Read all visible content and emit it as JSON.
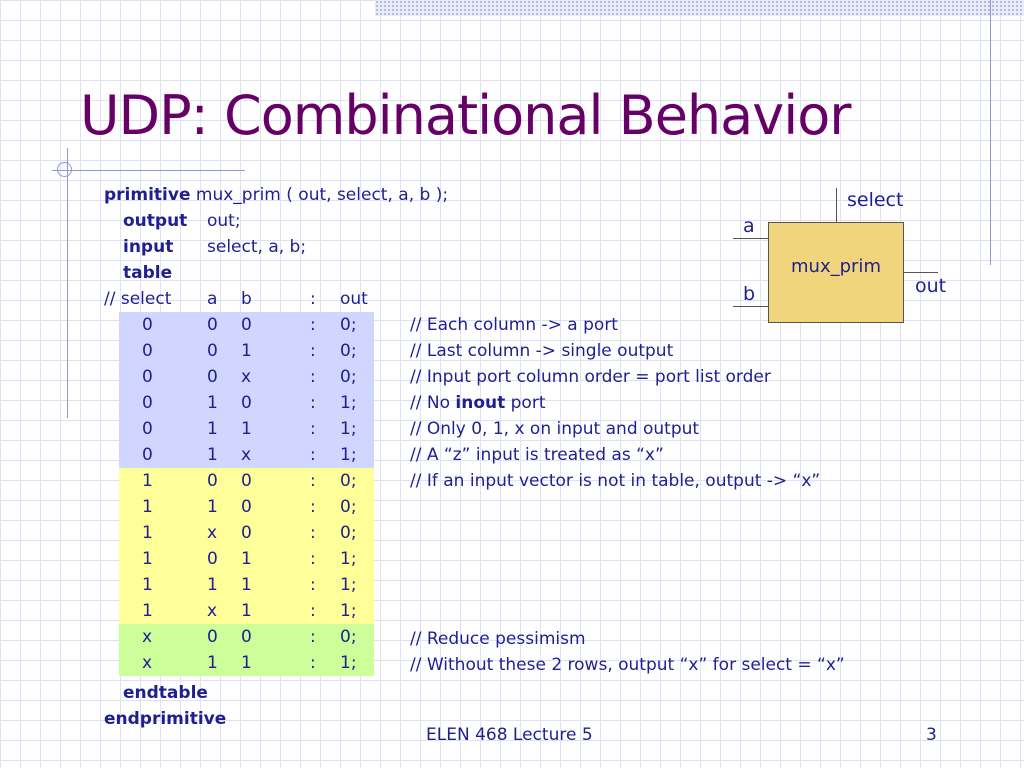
{
  "title": "UDP: Combinational Behavior",
  "header": {
    "line1_kw": "primitive",
    "line1_rest": "mux_prim ( out, select, a, b );",
    "output_kw": "output",
    "output_rest": "out;",
    "input_kw": "input",
    "input_rest": "select, a, b;",
    "table_kw": "table",
    "col_header": [
      "// select",
      "a",
      "b",
      ":",
      "out"
    ]
  },
  "rows": [
    {
      "select": "0",
      "a": "0",
      "b": "0",
      "sep": ":",
      "out": "0;",
      "band": "#cfd6ff"
    },
    {
      "select": "0",
      "a": "0",
      "b": "1",
      "sep": ":",
      "out": "0;",
      "band": "#cfd6ff"
    },
    {
      "select": "0",
      "a": "0",
      "b": "x",
      "sep": ":",
      "out": "0;",
      "band": "#cfd6ff"
    },
    {
      "select": "0",
      "a": "1",
      "b": "0",
      "sep": ":",
      "out": "1;",
      "band": "#cfd6ff"
    },
    {
      "select": "0",
      "a": "1",
      "b": "1",
      "sep": ":",
      "out": "1;",
      "band": "#cfd6ff"
    },
    {
      "select": "0",
      "a": "1",
      "b": "x",
      "sep": ":",
      "out": "1;",
      "band": "#cfd6ff"
    },
    {
      "select": "1",
      "a": "0",
      "b": "0",
      "sep": ":",
      "out": "0;",
      "band": "#ffff99"
    },
    {
      "select": "1",
      "a": "1",
      "b": "0",
      "sep": ":",
      "out": "0;",
      "band": "#ffff99"
    },
    {
      "select": "1",
      "a": "x",
      "b": "0",
      "sep": ":",
      "out": "0;",
      "band": "#ffff99"
    },
    {
      "select": "1",
      "a": "0",
      "b": "1",
      "sep": ":",
      "out": "1;",
      "band": "#ffff99"
    },
    {
      "select": "1",
      "a": "1",
      "b": "1",
      "sep": ":",
      "out": "1;",
      "band": "#ffff99"
    },
    {
      "select": "1",
      "a": "x",
      "b": "1",
      "sep": ":",
      "out": "1;",
      "band": "#ffff99"
    },
    {
      "select": "x",
      "a": "0",
      "b": "0",
      "sep": ":",
      "out": "0;",
      "band": "#ccff99"
    },
    {
      "select": "x",
      "a": "1",
      "b": "1",
      "sep": ":",
      "out": "1;",
      "band": "#ccff99"
    }
  ],
  "comments": {
    "c1": "// Each column -> a port",
    "c2": "// Last column -> single output",
    "c3": "// Input port column order = port list order",
    "c4_pre": "// No",
    "c4_kw": "inout",
    "c4_post": "port",
    "c5": "// Only 0, 1, x on input and output",
    "c6": "// A “z” input is treated as “x”",
    "c7": "// If an input vector is not in table, output -> “x”",
    "c8": "// Reduce pessimism",
    "c9": "// Without these 2 rows, output “x” for select = “x”"
  },
  "footer_kw": {
    "endtable": "endtable",
    "endprimitive": "endprimitive"
  },
  "diagram": {
    "box_label": "mux_prim",
    "select_label": "select",
    "a_label": "a",
    "b_label": "b",
    "out_label": "out",
    "box_color": "#f0d57c"
  },
  "footer": {
    "course": "ELEN 468 Lecture 5",
    "page": "3"
  },
  "colors": {
    "title": "#660066",
    "text": "#1f1f8f",
    "band_blue": "#cfd6ff",
    "band_yellow": "#ffff99",
    "band_green": "#ccff99"
  }
}
